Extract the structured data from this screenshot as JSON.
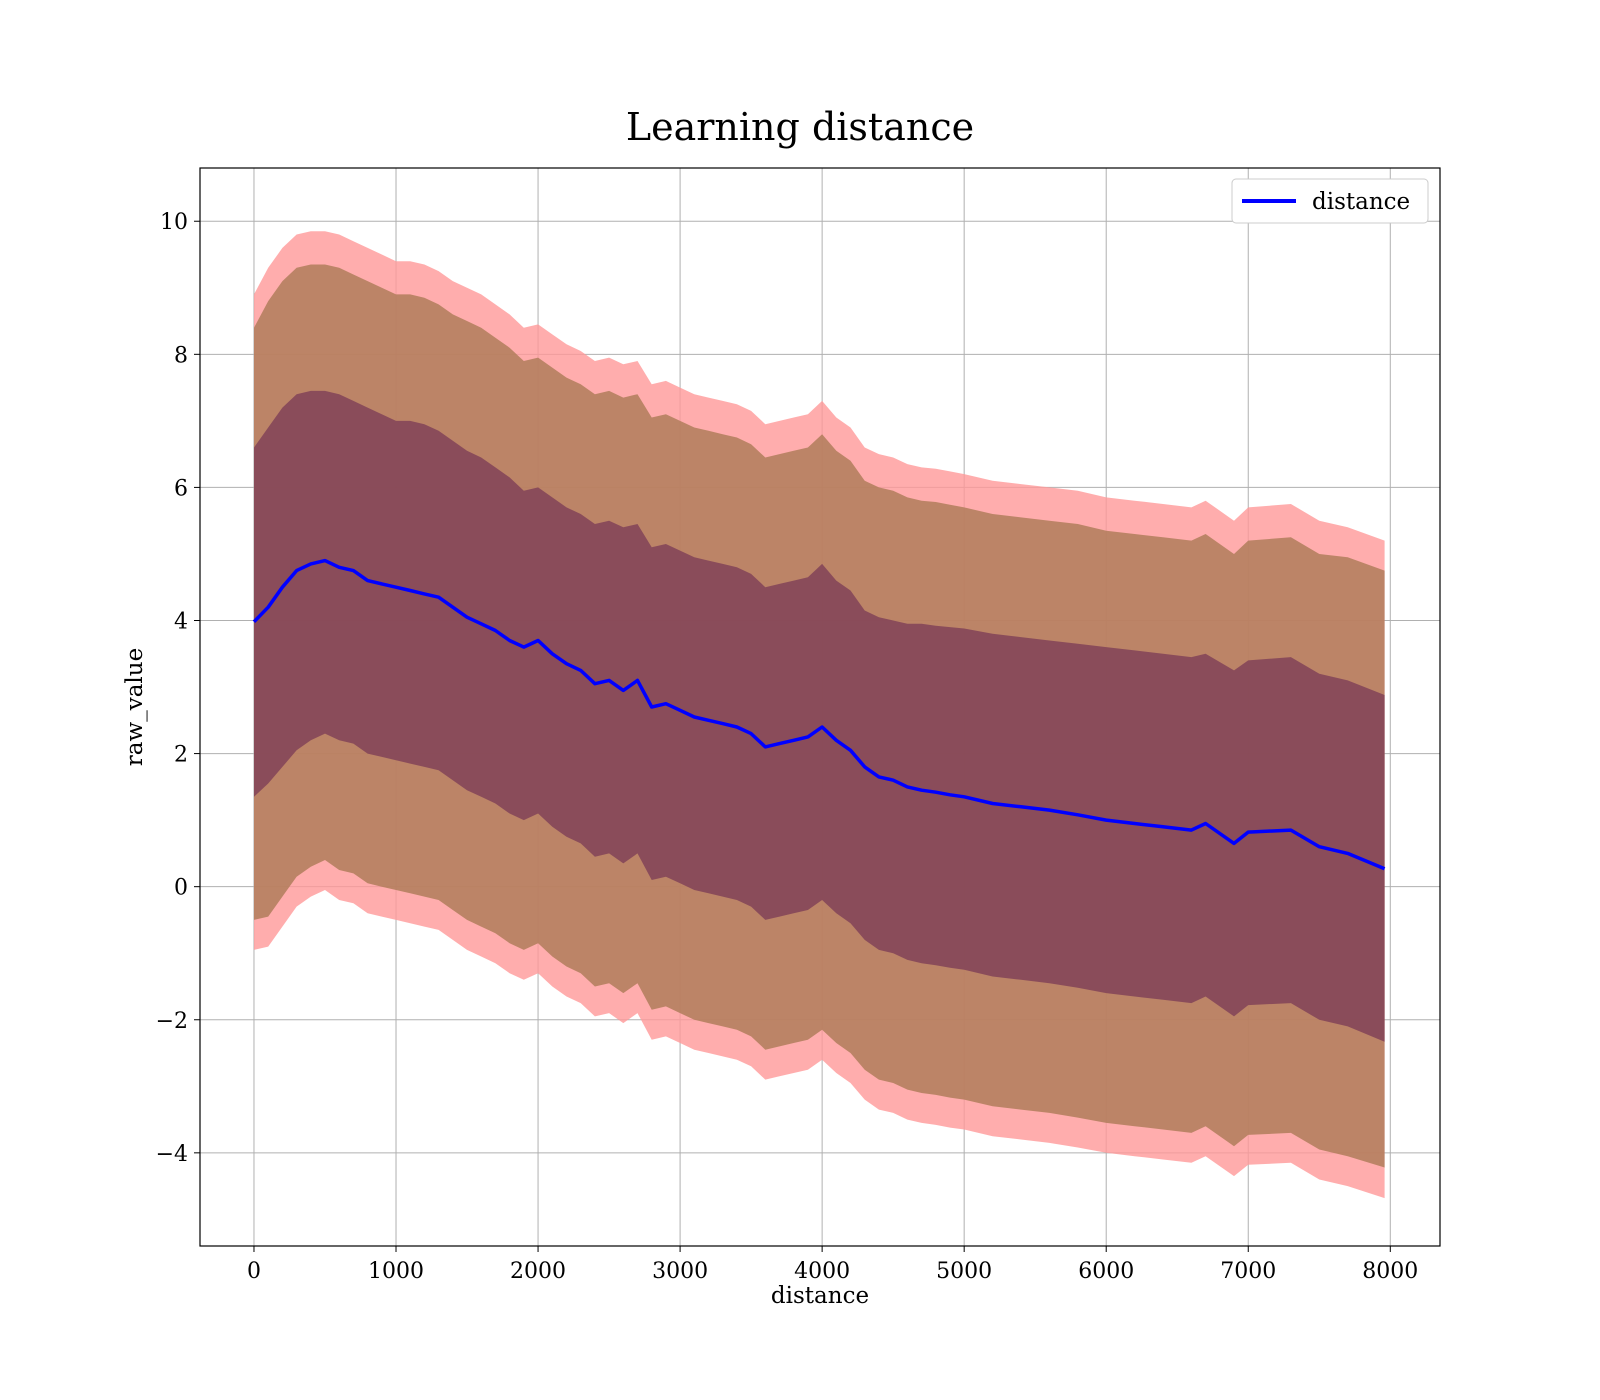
{
  "chart_data": {
    "type": "area",
    "title": "Learning distance",
    "xlabel": "distance",
    "ylabel": "raw_value",
    "xlim": [
      -380,
      8350
    ],
    "ylim": [
      -5.4,
      10.8
    ],
    "xticks": [
      0,
      1000,
      2000,
      3000,
      4000,
      5000,
      6000,
      7000,
      8000
    ],
    "yticks": [
      -4,
      -2,
      0,
      2,
      4,
      6,
      8,
      10
    ],
    "grid": true,
    "legend": {
      "position": "top-right",
      "entries": [
        "distance"
      ]
    },
    "colors": {
      "line": "#0000ff",
      "outer_band": "#ff9999",
      "middle_band": "#b07d5a",
      "inner_band": "#7a3a55"
    },
    "x": [
      0,
      100,
      200,
      300,
      400,
      500,
      600,
      700,
      800,
      900,
      1000,
      1100,
      1200,
      1300,
      1400,
      1500,
      1600,
      1700,
      1800,
      1900,
      2000,
      2100,
      2200,
      2300,
      2400,
      2500,
      2600,
      2700,
      2800,
      2900,
      3000,
      3100,
      3200,
      3300,
      3400,
      3500,
      3600,
      3700,
      3800,
      3900,
      4000,
      4100,
      4200,
      4300,
      4400,
      4500,
      4600,
      4700,
      4800,
      4900,
      5000,
      5200,
      5400,
      5600,
      5800,
      6000,
      6200,
      6400,
      6600,
      6700,
      6900,
      7000,
      7300,
      7500,
      7700,
      7960
    ],
    "series": [
      {
        "name": "distance",
        "values": [
          3.98,
          4.2,
          4.5,
          4.75,
          4.85,
          4.9,
          4.8,
          4.75,
          4.6,
          4.55,
          4.5,
          4.45,
          4.4,
          4.35,
          4.2,
          4.05,
          3.95,
          3.85,
          3.7,
          3.6,
          3.7,
          3.5,
          3.35,
          3.25,
          3.05,
          3.1,
          2.95,
          3.1,
          2.7,
          2.75,
          2.65,
          2.55,
          2.5,
          2.45,
          2.4,
          2.3,
          2.1,
          2.15,
          2.2,
          2.25,
          2.4,
          2.2,
          2.05,
          1.8,
          1.65,
          1.6,
          1.5,
          1.45,
          1.42,
          1.38,
          1.35,
          1.25,
          1.2,
          1.15,
          1.08,
          1.0,
          0.95,
          0.9,
          0.85,
          0.95,
          0.65,
          0.82,
          0.85,
          0.6,
          0.5,
          0.27
        ]
      }
    ],
    "bands": {
      "outer": {
        "upper": [
          8.9,
          9.3,
          9.6,
          9.8,
          9.85,
          9.85,
          9.8,
          9.7,
          9.6,
          9.5,
          9.4,
          9.4,
          9.35,
          9.25,
          9.1,
          9.0,
          8.9,
          8.75,
          8.6,
          8.4,
          8.45,
          8.3,
          8.15,
          8.05,
          7.9,
          7.95,
          7.85,
          7.9,
          7.55,
          7.6,
          7.5,
          7.4,
          7.35,
          7.3,
          7.25,
          7.15,
          6.95,
          7.0,
          7.05,
          7.1,
          7.3,
          7.05,
          6.9,
          6.6,
          6.5,
          6.45,
          6.35,
          6.3,
          6.28,
          6.24,
          6.2,
          6.1,
          6.05,
          6.0,
          5.95,
          5.85,
          5.8,
          5.75,
          5.7,
          5.8,
          5.5,
          5.7,
          5.75,
          5.5,
          5.4,
          5.2
        ],
        "lower": [
          -0.95,
          -0.9,
          -0.6,
          -0.3,
          -0.15,
          -0.05,
          -0.2,
          -0.25,
          -0.4,
          -0.45,
          -0.5,
          -0.55,
          -0.6,
          -0.65,
          -0.8,
          -0.95,
          -1.05,
          -1.15,
          -1.3,
          -1.4,
          -1.3,
          -1.5,
          -1.65,
          -1.75,
          -1.95,
          -1.9,
          -2.05,
          -1.9,
          -2.3,
          -2.25,
          -2.35,
          -2.45,
          -2.5,
          -2.55,
          -2.6,
          -2.7,
          -2.9,
          -2.85,
          -2.8,
          -2.75,
          -2.6,
          -2.8,
          -2.95,
          -3.2,
          -3.35,
          -3.4,
          -3.5,
          -3.55,
          -3.58,
          -3.62,
          -3.65,
          -3.75,
          -3.8,
          -3.85,
          -3.92,
          -4.0,
          -4.05,
          -4.1,
          -4.15,
          -4.05,
          -4.35,
          -4.18,
          -4.15,
          -4.4,
          -4.5,
          -4.68
        ]
      },
      "middle": {
        "upper": [
          8.4,
          8.8,
          9.1,
          9.3,
          9.35,
          9.35,
          9.3,
          9.2,
          9.1,
          9.0,
          8.9,
          8.9,
          8.85,
          8.75,
          8.6,
          8.5,
          8.4,
          8.25,
          8.1,
          7.9,
          7.95,
          7.8,
          7.65,
          7.55,
          7.4,
          7.45,
          7.35,
          7.4,
          7.05,
          7.1,
          7.0,
          6.9,
          6.85,
          6.8,
          6.75,
          6.65,
          6.45,
          6.5,
          6.55,
          6.6,
          6.8,
          6.55,
          6.4,
          6.1,
          6.0,
          5.95,
          5.85,
          5.8,
          5.78,
          5.74,
          5.7,
          5.6,
          5.55,
          5.5,
          5.45,
          5.35,
          5.3,
          5.25,
          5.2,
          5.3,
          5.0,
          5.2,
          5.25,
          5.0,
          4.95,
          4.75
        ],
        "lower": [
          -0.5,
          -0.45,
          -0.15,
          0.15,
          0.3,
          0.4,
          0.25,
          0.2,
          0.05,
          0.0,
          -0.05,
          -0.1,
          -0.15,
          -0.2,
          -0.35,
          -0.5,
          -0.6,
          -0.7,
          -0.85,
          -0.95,
          -0.85,
          -1.05,
          -1.2,
          -1.3,
          -1.5,
          -1.45,
          -1.6,
          -1.45,
          -1.85,
          -1.8,
          -1.9,
          -2.0,
          -2.05,
          -2.1,
          -2.15,
          -2.25,
          -2.45,
          -2.4,
          -2.35,
          -2.3,
          -2.15,
          -2.35,
          -2.5,
          -2.75,
          -2.9,
          -2.95,
          -3.05,
          -3.1,
          -3.13,
          -3.17,
          -3.2,
          -3.3,
          -3.35,
          -3.4,
          -3.47,
          -3.55,
          -3.6,
          -3.65,
          -3.7,
          -3.6,
          -3.9,
          -3.73,
          -3.7,
          -3.95,
          -4.05,
          -4.22
        ]
      },
      "inner": {
        "upper": [
          6.6,
          6.9,
          7.2,
          7.4,
          7.45,
          7.45,
          7.4,
          7.3,
          7.2,
          7.1,
          7.0,
          7.0,
          6.95,
          6.85,
          6.7,
          6.55,
          6.45,
          6.3,
          6.15,
          5.95,
          6.0,
          5.85,
          5.7,
          5.6,
          5.45,
          5.5,
          5.4,
          5.45,
          5.1,
          5.15,
          5.05,
          4.95,
          4.9,
          4.85,
          4.8,
          4.7,
          4.5,
          4.55,
          4.6,
          4.65,
          4.85,
          4.6,
          4.45,
          4.15,
          4.05,
          4.0,
          3.95,
          3.95,
          3.92,
          3.9,
          3.88,
          3.8,
          3.75,
          3.7,
          3.65,
          3.6,
          3.55,
          3.5,
          3.45,
          3.5,
          3.25,
          3.4,
          3.45,
          3.2,
          3.1,
          2.88
        ],
        "lower": [
          1.35,
          1.55,
          1.8,
          2.05,
          2.2,
          2.3,
          2.2,
          2.15,
          2.0,
          1.95,
          1.9,
          1.85,
          1.8,
          1.75,
          1.6,
          1.45,
          1.35,
          1.25,
          1.1,
          1.0,
          1.1,
          0.9,
          0.75,
          0.65,
          0.45,
          0.5,
          0.35,
          0.5,
          0.1,
          0.15,
          0.05,
          -0.05,
          -0.1,
          -0.15,
          -0.2,
          -0.3,
          -0.5,
          -0.45,
          -0.4,
          -0.35,
          -0.2,
          -0.4,
          -0.55,
          -0.8,
          -0.95,
          -1.0,
          -1.1,
          -1.15,
          -1.18,
          -1.22,
          -1.25,
          -1.35,
          -1.4,
          -1.45,
          -1.52,
          -1.6,
          -1.65,
          -1.7,
          -1.75,
          -1.65,
          -1.95,
          -1.78,
          -1.75,
          -2.0,
          -2.1,
          -2.33
        ]
      }
    }
  }
}
